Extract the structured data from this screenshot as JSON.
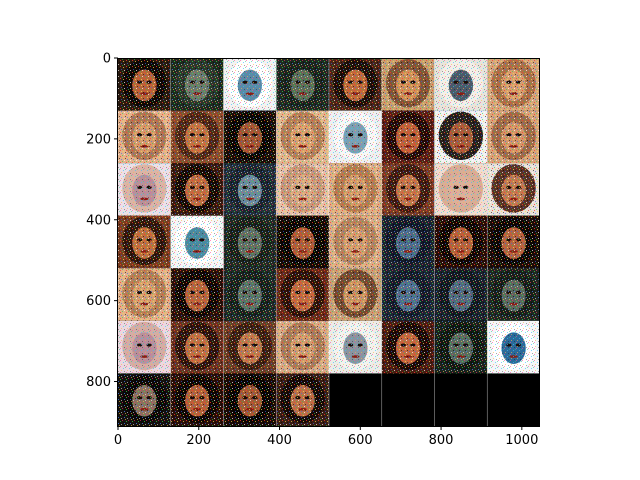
{
  "image": {
    "description_kind": "matplotlib imshow grid of noisy face samples",
    "grid": {
      "rows": 7,
      "cols": 8,
      "filled_tiles": 52
    },
    "axes": {
      "x_ticks": [
        "0",
        "200",
        "400",
        "600",
        "800",
        "1000"
      ],
      "y_ticks": [
        "0",
        "200",
        "400",
        "600",
        "800"
      ]
    },
    "tiles": [
      {
        "bg": "#2a1a10",
        "hair": "#0d0704",
        "face": "#b8643a",
        "noise": "warm"
      },
      {
        "bg": "#1c2a1e",
        "hair": "#2c3a2c",
        "face": "#6a7a6a",
        "noise": "cool"
      },
      {
        "bg": "#f2f2f2",
        "hair": "#ffffff",
        "face": "#5a8aa8",
        "noise": "pale"
      },
      {
        "bg": "#1e2a22",
        "hair": "#1a241d",
        "face": "#5b6d58",
        "noise": "cool"
      },
      {
        "bg": "#4a2418",
        "hair": "#1a0c08",
        "face": "#c06a3c",
        "noise": "warm"
      },
      {
        "bg": "#c8a070",
        "hair": "#7a4a30",
        "face": "#d2905a",
        "noise": "warm"
      },
      {
        "bg": "#e8e4dc",
        "hair": "#f4f0ea",
        "face": "#4a5a6a",
        "noise": "pale"
      },
      {
        "bg": "#d6a67c",
        "hair": "#a66a44",
        "face": "#d89e6e",
        "noise": "warm"
      },
      {
        "bg": "#e4b28c",
        "hair": "#a87050",
        "face": "#d49a6c",
        "noise": "warm"
      },
      {
        "bg": "#8a4a2c",
        "hair": "#4a2214",
        "face": "#c27444",
        "noise": "warm"
      },
      {
        "bg": "#1a0d08",
        "hair": "#0a0503",
        "face": "#a05434",
        "noise": "warm"
      },
      {
        "bg": "#e0b890",
        "hair": "#b07a54",
        "face": "#d9a070",
        "noise": "warm"
      },
      {
        "bg": "#eef0f2",
        "hair": "#f8f8f8",
        "face": "#7aa0b4",
        "noise": "pale"
      },
      {
        "bg": "#5a1c14",
        "hair": "#200806",
        "face": "#c0603a",
        "noise": "warm"
      },
      {
        "bg": "#f0f0f0",
        "hair": "#120806",
        "face": "#a85a3a",
        "noise": "warm"
      },
      {
        "bg": "#d8a47a",
        "hair": "#9a6444",
        "face": "#d4966a",
        "noise": "warm"
      },
      {
        "bg": "#ece0e8",
        "hair": "#d8b0a0",
        "face": "#b8909a",
        "noise": "pale"
      },
      {
        "bg": "#3a1a10",
        "hair": "#140804",
        "face": "#c06c42",
        "noise": "warm"
      },
      {
        "bg": "#24303a",
        "hair": "#1a2430",
        "face": "#6a8a9a",
        "noise": "cool"
      },
      {
        "bg": "#e6c0a8",
        "hair": "#c49478",
        "face": "#d8a884",
        "noise": "warm"
      },
      {
        "bg": "#deae86",
        "hair": "#b0784e",
        "face": "#d29a6c",
        "noise": "warm"
      },
      {
        "bg": "#7a3a24",
        "hair": "#3a1610",
        "face": "#c4744a",
        "noise": "warm"
      },
      {
        "bg": "#f0dcd0",
        "hair": "#d4a890",
        "face": "#dcb09a",
        "noise": "pale"
      },
      {
        "bg": "#eae0d8",
        "hair": "#4a1e12",
        "face": "#c27a52",
        "noise": "warm"
      },
      {
        "bg": "#7a3c20",
        "hair": "#2a120a",
        "face": "#c0703e",
        "noise": "warm"
      },
      {
        "bg": "#f6f6f6",
        "hair": "#ffffff",
        "face": "#4a8aa0",
        "noise": "pale"
      },
      {
        "bg": "#202a24",
        "hair": "#18201a",
        "face": "#5e6e62",
        "noise": "cool"
      },
      {
        "bg": "#160a06",
        "hair": "#0a0403",
        "face": "#b05c38",
        "noise": "warm"
      },
      {
        "bg": "#dcae88",
        "hair": "#b0805c",
        "face": "#d49c70",
        "noise": "warm"
      },
      {
        "bg": "#1a2230",
        "hair": "#12182a",
        "face": "#4a6a8a",
        "noise": "cool"
      },
      {
        "bg": "#2a0c08",
        "hair": "#0e0403",
        "face": "#b8603a",
        "noise": "warm"
      },
      {
        "bg": "#1c0c08",
        "hair": "#0c0504",
        "face": "#b46440",
        "noise": "warm"
      },
      {
        "bg": "#e2b28a",
        "hair": "#b07a52",
        "face": "#d6a070",
        "noise": "warm"
      },
      {
        "bg": "#2a100a",
        "hair": "#0e0503",
        "face": "#b8643c",
        "noise": "warm"
      },
      {
        "bg": "#1e2a26",
        "hair": "#16201c",
        "face": "#5a7066",
        "noise": "cool"
      },
      {
        "bg": "#6a2818",
        "hair": "#2a0e08",
        "face": "#c46a40",
        "noise": "warm"
      },
      {
        "bg": "#c8a078",
        "hair": "#6a4028",
        "face": "#cc9464",
        "noise": "warm"
      },
      {
        "bg": "#1c2634",
        "hair": "#141c2a",
        "face": "#4e6e8e",
        "noise": "cool"
      },
      {
        "bg": "#1a222c",
        "hair": "#121820",
        "face": "#50687e",
        "noise": "cool"
      },
      {
        "bg": "#1e2822",
        "hair": "#161e1a",
        "face": "#58685e",
        "noise": "cool"
      },
      {
        "bg": "#ecd8e0",
        "hair": "#d0a8a0",
        "face": "#b8909c",
        "noise": "pale"
      },
      {
        "bg": "#6a3020",
        "hair": "#2a100a",
        "face": "#c07044",
        "noise": "warm"
      },
      {
        "bg": "#6a3a26",
        "hair": "#3a1c10",
        "face": "#c0784e",
        "noise": "warm"
      },
      {
        "bg": "#d8aa86",
        "hair": "#a87454",
        "face": "#d29c70",
        "noise": "warm"
      },
      {
        "bg": "#ecece8",
        "hair": "#f4f4f0",
        "face": "#8a94a0",
        "noise": "pale"
      },
      {
        "bg": "#4a1c12",
        "hair": "#180806",
        "face": "#c26840",
        "noise": "warm"
      },
      {
        "bg": "#18221c",
        "hair": "#101812",
        "face": "#566a60",
        "noise": "cool"
      },
      {
        "bg": "#f4f6f8",
        "hair": "#ffffff",
        "face": "#2a6a9a",
        "noise": "pale"
      },
      {
        "bg": "#14100e",
        "hair": "#0a0807",
        "face": "#8a7060",
        "noise": "cool"
      },
      {
        "bg": "#2a0e08",
        "hair": "#0c0403",
        "face": "#b6603a",
        "noise": "warm"
      },
      {
        "bg": "#1a0a06",
        "hair": "#080302",
        "face": "#a45834",
        "noise": "warm"
      },
      {
        "bg": "#3a1c14",
        "hair": "#140806",
        "face": "#bc7048",
        "noise": "warm"
      }
    ]
  }
}
